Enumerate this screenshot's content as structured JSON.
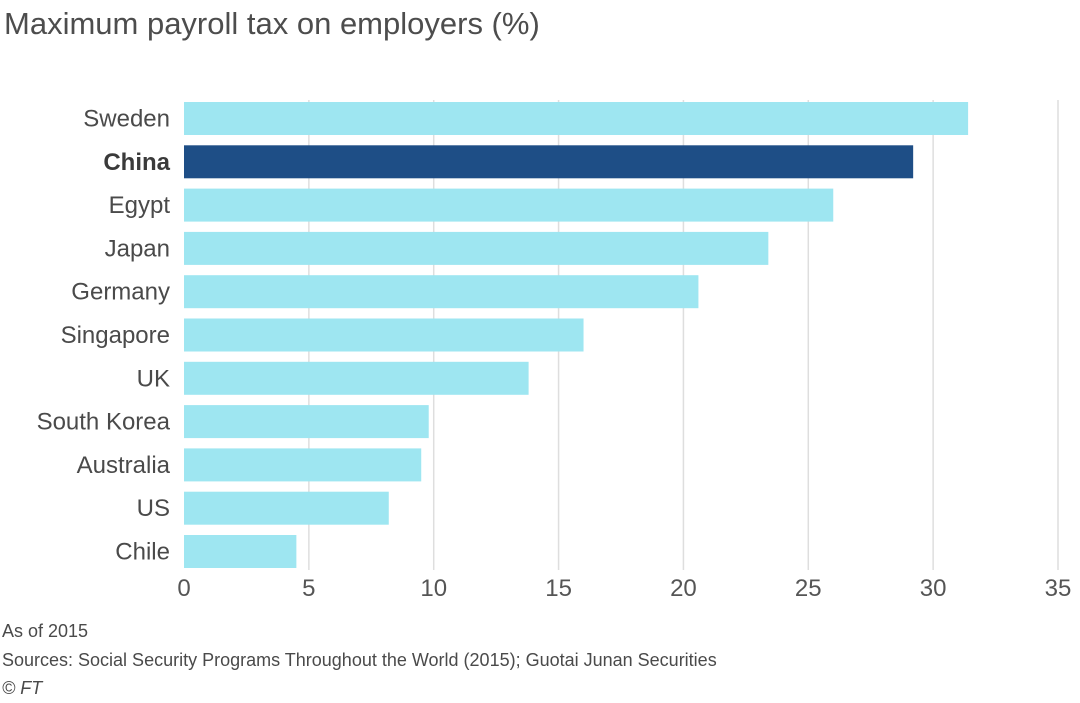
{
  "chart_data": {
    "type": "bar",
    "orientation": "horizontal",
    "title": "Maximum payroll tax on employers (%)",
    "categories": [
      "Sweden",
      "China",
      "Egypt",
      "Japan",
      "Germany",
      "Singapore",
      "UK",
      "South Korea",
      "Australia",
      "US",
      "Chile"
    ],
    "values": [
      31.4,
      29.2,
      26.0,
      23.4,
      20.6,
      16.0,
      13.8,
      9.8,
      9.5,
      8.2,
      4.5
    ],
    "highlight": "China",
    "xlim": [
      0,
      35
    ],
    "xticks": [
      "0",
      "5",
      "10",
      "15",
      "20",
      "25",
      "30",
      "35"
    ],
    "xtick_values": [
      0,
      5,
      10,
      15,
      20,
      25,
      30,
      35
    ],
    "grid": "vertical",
    "colors": {
      "bar": "#9ee6f1",
      "highlight": "#1e4e86",
      "grid": "#dedede"
    }
  },
  "footer": {
    "note": "As of 2015",
    "sources": "Sources: Social Security Programs Throughout the World (2015); Guotai Junan Securities",
    "copyright": "© FT"
  }
}
